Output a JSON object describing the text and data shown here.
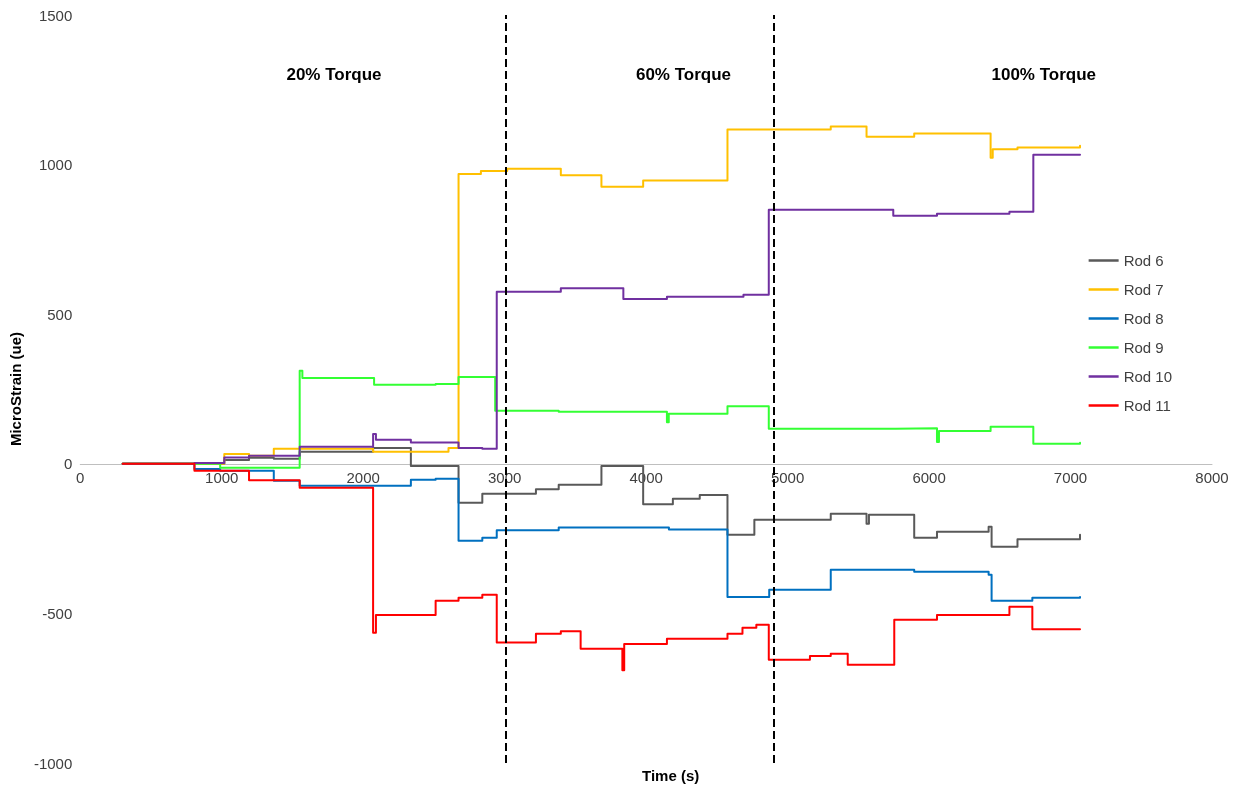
{
  "chart_data": {
    "type": "step",
    "xlabel": "Time (s)",
    "ylabel": "MicroStrain (ue)",
    "xlim": [
      0,
      8000
    ],
    "xticks": [
      0,
      1000,
      2000,
      3000,
      4000,
      5000,
      6000,
      7000,
      8000
    ],
    "ylim": [
      -1000,
      1500
    ],
    "yticks": [
      -1000,
      -500,
      0,
      500,
      1000,
      1500
    ],
    "grid": false,
    "legend": "right",
    "marker": "none",
    "line_style": "solid",
    "annotations": [
      "20% Torque",
      "60% Torque",
      "100% Torque"
    ],
    "ref_lines": [
      {
        "axis": "x",
        "value": 3010,
        "color": "#000000",
        "line_style": "dashed"
      },
      {
        "axis": "x",
        "value": 4905,
        "color": "#000000",
        "line_style": "dashed"
      }
    ],
    "series": [
      {
        "name": "Rod 6",
        "color": "#595959",
        "x": [
          300,
          1018,
          1193,
          1368,
          1551,
          2070,
          2337,
          2674,
          2842,
          3221,
          3382,
          3684,
          3979,
          4189,
          4379,
          4575,
          4765,
          5305,
          5558,
          5575,
          5895,
          6056,
          6421,
          6442,
          6625,
          7067
        ],
        "values": [
          0,
          13,
          20,
          17,
          40,
          53,
          -7,
          -130,
          -100,
          -85,
          -70,
          -7,
          -135,
          -117,
          -104,
          -237,
          -187,
          -167,
          -200,
          -170,
          -247,
          -227,
          -210,
          -277,
          -252,
          -237
        ]
      },
      {
        "name": "Rod 7",
        "color": "#ffc000",
        "x": [
          300,
          1018,
          1193,
          1368,
          2070,
          2603,
          2674,
          2832,
          3018,
          3397,
          3684,
          3979,
          4575,
          5305,
          5558,
          5895,
          6435,
          6450,
          6625,
          7067
        ],
        "values": [
          0,
          33,
          27,
          50,
          40,
          53,
          969,
          979,
          986,
          964,
          926,
          947,
          1117,
          1127,
          1093,
          1104,
          1023,
          1051,
          1057,
          1063
        ]
      },
      {
        "name": "Rod 8",
        "color": "#0070c0",
        "x": [
          300,
          807,
          989,
          1368,
          1551,
          2337,
          2512,
          2674,
          2842,
          2944,
          3382,
          4161,
          4575,
          4870,
          5305,
          5895,
          6421,
          6442,
          6730,
          7067
        ],
        "values": [
          0,
          -17,
          -23,
          -57,
          -73,
          -53,
          -50,
          -257,
          -247,
          -222,
          -213,
          -220,
          -445,
          -421,
          -354,
          -361,
          -371,
          -458,
          -448,
          -445
        ]
      },
      {
        "name": "Rod 9",
        "color": "#33ff33",
        "x": [
          300,
          989,
          1551,
          1570,
          2077,
          2512,
          2674,
          2933,
          3382,
          4147,
          4160,
          4575,
          4867,
          5761,
          6056,
          6070,
          6435,
          6737,
          7067
        ],
        "values": [
          0,
          -13,
          311,
          287,
          264,
          267,
          290,
          177,
          174,
          139,
          167,
          192,
          117,
          119,
          73,
          110,
          124,
          67,
          70
        ]
      },
      {
        "name": "Rod 10",
        "color": "#7030a0",
        "x": [
          300,
          807,
          1018,
          1193,
          1551,
          2070,
          2090,
          2337,
          2674,
          2842,
          2944,
          3397,
          3839,
          4147,
          4688,
          4867,
          5747,
          6056,
          6568,
          6737,
          7067
        ],
        "values": [
          0,
          3,
          21,
          27,
          57,
          100,
          80,
          71,
          53,
          50,
          575,
          587,
          551,
          558,
          565,
          849,
          829,
          836,
          842,
          1033,
          1033
        ]
      },
      {
        "name": "Rod 11",
        "color": "#ff0000",
        "x": [
          300,
          807,
          1193,
          1551,
          2070,
          2090,
          2512,
          2674,
          2842,
          2944,
          3221,
          3397,
          3537,
          3832,
          3845,
          4147,
          4575,
          4681,
          4779,
          4867,
          5158,
          5305,
          5425,
          5754,
          6056,
          6568,
          6730,
          7067
        ],
        "values": [
          0,
          -23,
          -55,
          -80,
          -565,
          -505,
          -458,
          -448,
          -438,
          -597,
          -568,
          -560,
          -618,
          -690,
          -602,
          -585,
          -568,
          -548,
          -538,
          -655,
          -642,
          -635,
          -672,
          -521,
          -505,
          -478,
          -553,
          -553
        ]
      }
    ]
  }
}
